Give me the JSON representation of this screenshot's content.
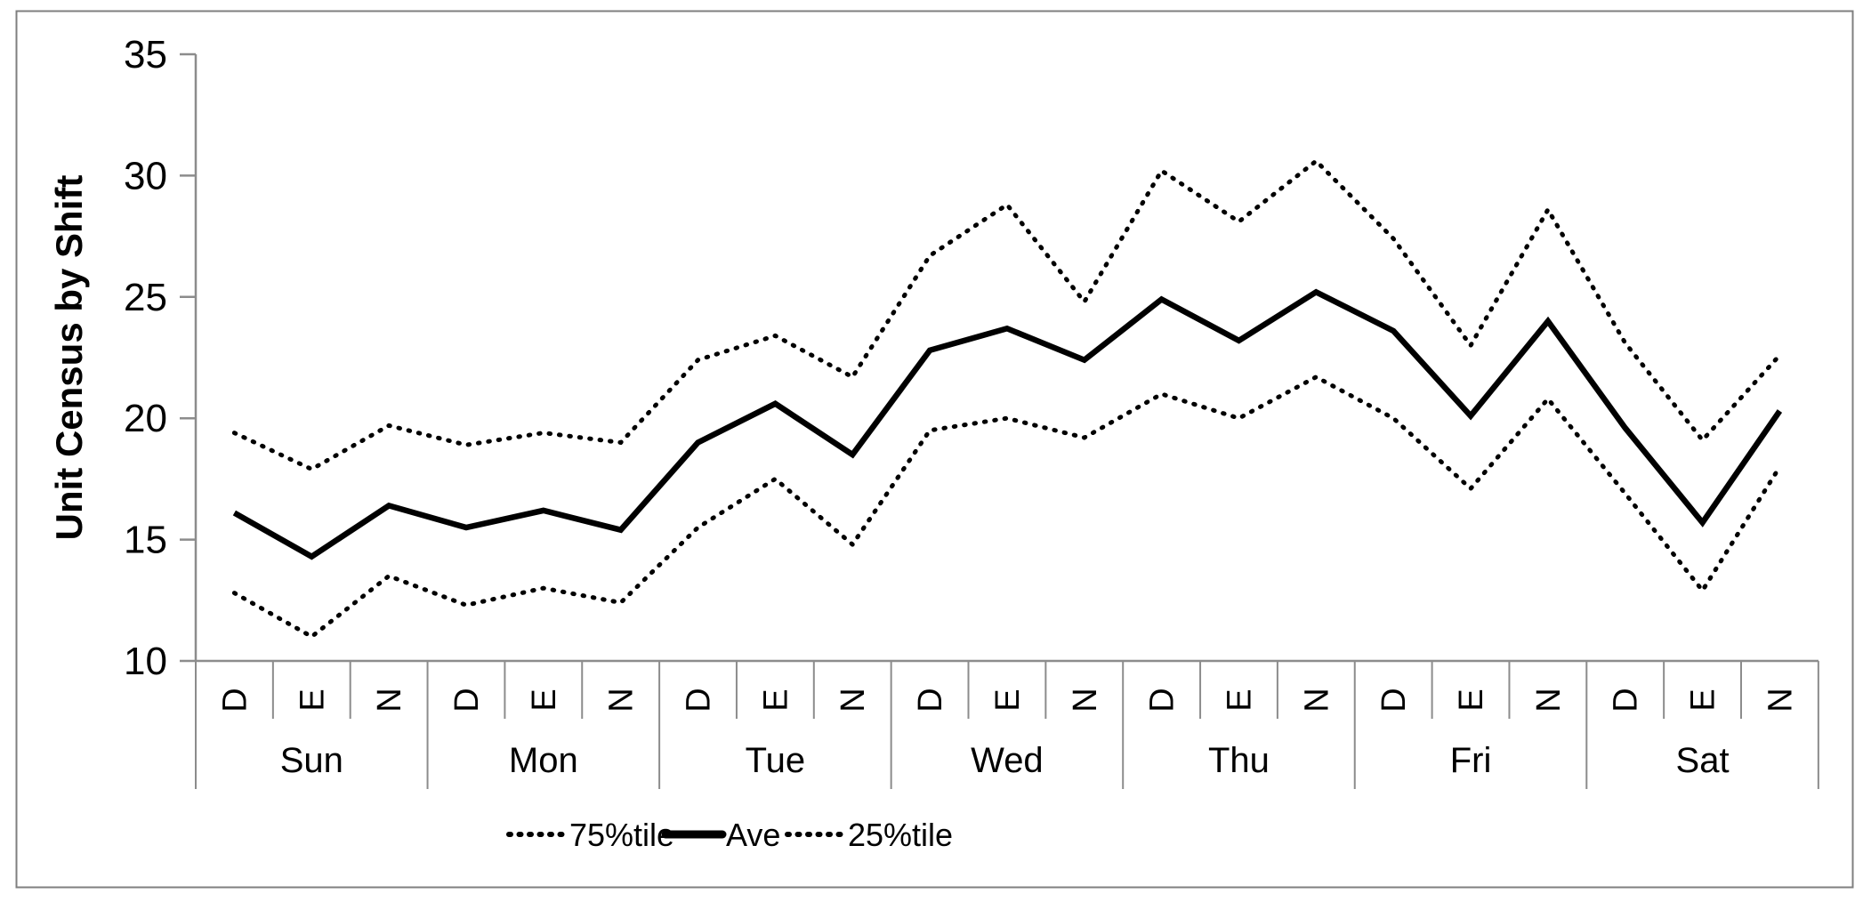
{
  "chart_data": {
    "type": "line",
    "title": "",
    "xlabel": "",
    "ylabel": "Unit Census by Shift",
    "ylim": [
      10,
      35
    ],
    "yticks": [
      10,
      15,
      20,
      25,
      30,
      35
    ],
    "grid": "off",
    "legend_position": "bottom-center",
    "days": [
      "Sun",
      "Mon",
      "Tue",
      "Wed",
      "Thu",
      "Fri",
      "Sat"
    ],
    "shifts_per_day": [
      "D",
      "E",
      "N"
    ],
    "series": [
      {
        "name": "75%tile",
        "style": "dotted",
        "color": "#000000",
        "values": [
          19.4,
          17.9,
          19.7,
          18.9,
          19.4,
          19.0,
          22.4,
          23.4,
          21.7,
          26.7,
          28.8,
          24.8,
          30.2,
          28.1,
          30.6,
          27.4,
          23.0,
          28.6,
          23.1,
          19.1,
          22.6
        ]
      },
      {
        "name": "Ave",
        "style": "solid",
        "color": "#000000",
        "values": [
          16.1,
          14.3,
          16.4,
          15.5,
          16.2,
          15.4,
          19.0,
          20.6,
          18.5,
          22.8,
          23.7,
          22.4,
          24.9,
          23.2,
          25.2,
          23.6,
          20.1,
          24.0,
          19.6,
          15.7,
          20.3
        ]
      },
      {
        "name": "25%tile",
        "style": "dotted",
        "color": "#000000",
        "values": [
          12.8,
          11.0,
          13.5,
          12.3,
          13.0,
          12.4,
          15.5,
          17.5,
          14.8,
          19.5,
          20.0,
          19.2,
          21.0,
          20.0,
          21.7,
          20.0,
          17.1,
          20.8,
          16.9,
          12.9,
          18.0
        ]
      }
    ]
  },
  "colors": {
    "background": "#ffffff",
    "frame_border": "#7f7f7f",
    "axis_line": "#8c8c8c",
    "separator_line": "#8c8c8c",
    "data_line": "#000000",
    "text": "#000000"
  }
}
